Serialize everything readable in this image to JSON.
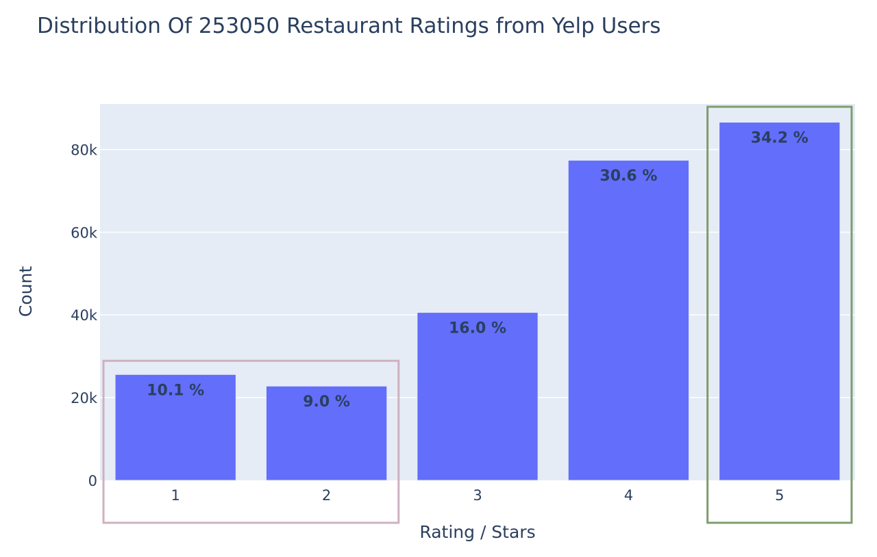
{
  "chart_data": {
    "type": "bar",
    "title": "Distribution Of 253050 Restaurant Ratings from Yelp Users",
    "xlabel": "Rating / Stars",
    "ylabel": "Count",
    "categories": [
      "1",
      "2",
      "3",
      "4",
      "5"
    ],
    "values": [
      25600,
      22800,
      40600,
      77400,
      86600
    ],
    "percent_labels": [
      "10.1 %",
      "9.0 %",
      "16.0 %",
      "30.6 %",
      "34.2 %"
    ],
    "ylim": [
      0,
      91000
    ],
    "yticks": [
      0,
      20000,
      40000,
      60000,
      80000
    ],
    "ytick_labels": [
      "0",
      "20k",
      "40k",
      "60k",
      "80k"
    ],
    "grid": true,
    "colors": {
      "bar": "#636efa",
      "plot_bg": "#e5ecf6",
      "text": "#2a3f5f",
      "highlight_low": "#cfb1c0",
      "highlight_high": "#7f9c6e"
    },
    "highlights": [
      {
        "categories": [
          "1",
          "2"
        ],
        "color": "#cfb1c0"
      },
      {
        "categories": [
          "5"
        ],
        "color": "#7f9c6e"
      }
    ]
  }
}
